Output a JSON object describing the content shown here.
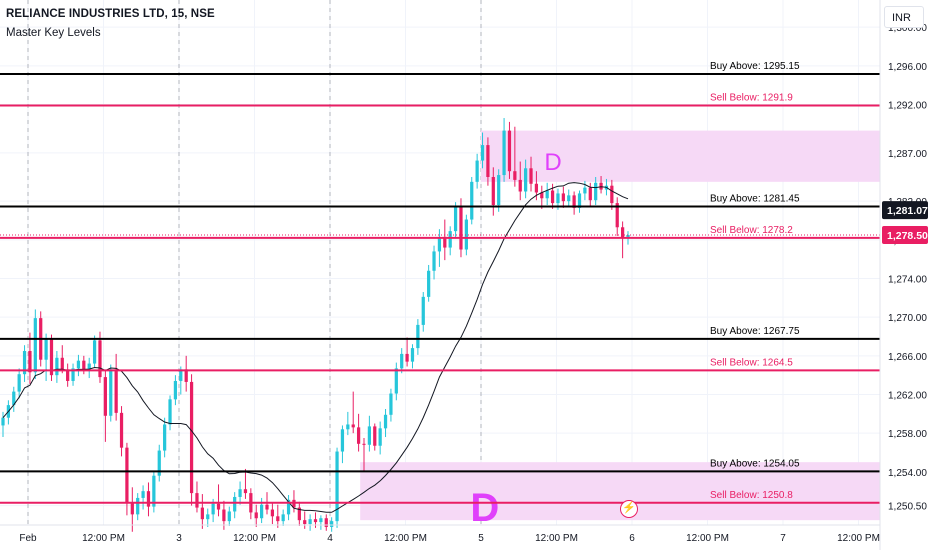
{
  "header": {
    "symbol_line": "RELIANCE INDUSTRIES LTD, 15, NSE",
    "indicator": "Master Key Levels"
  },
  "currency_button": "INR",
  "chart_data": {
    "type": "candlestick",
    "title": "RELIANCE INDUSTRIES LTD, 15, NSE",
    "y_axis": {
      "ylim": [
        1248.5,
        1302.5
      ],
      "ticks": [
        "1,300.00",
        "1,296.00",
        "1,292.00",
        "1,287.00",
        "1,282.00",
        "1,278.00",
        "1,274.00",
        "1,270.00",
        "1,266.00",
        "1,262.00",
        "1,258.00",
        "1,254.00",
        "1,250.50"
      ],
      "tick_values": [
        1300.0,
        1296.0,
        1292.0,
        1287.0,
        1282.0,
        1278.0,
        1274.0,
        1270.0,
        1266.0,
        1262.0,
        1258.0,
        1254.0,
        1250.5
      ]
    },
    "x_axis": {
      "ticks": [
        {
          "label": "Feb",
          "session": 0.0
        },
        {
          "label": "12:00 PM",
          "session": 0.5
        },
        {
          "label": "3",
          "session": 1.0
        },
        {
          "label": "12:00 PM",
          "session": 1.5
        },
        {
          "label": "4",
          "session": 2.0
        },
        {
          "label": "12:00 PM",
          "session": 2.5
        },
        {
          "label": "5",
          "session": 3.0
        },
        {
          "label": "12:00 PM",
          "session": 3.5
        },
        {
          "label": "6",
          "session": 4.0
        },
        {
          "label": "12:00 PM",
          "session": 4.5
        },
        {
          "label": "7",
          "session": 5.0
        },
        {
          "label": "12:00 PM",
          "session": 5.5
        }
      ]
    },
    "levels": [
      {
        "label": "Buy Above: 1295.15",
        "value": 1295.15,
        "color": "#000000"
      },
      {
        "label": "Sell Below: 1291.9",
        "value": 1291.9,
        "color": "#e91e63"
      },
      {
        "label": "Buy Above: 1281.45",
        "value": 1281.45,
        "color": "#000000"
      },
      {
        "label": "Sell Below: 1278.2",
        "value": 1278.2,
        "color": "#e91e63"
      },
      {
        "label": "Buy Above: 1267.75",
        "value": 1267.75,
        "color": "#000000"
      },
      {
        "label": "Sell Below: 1264.5",
        "value": 1264.5,
        "color": "#e91e63"
      },
      {
        "label": "Buy Above: 1254.05",
        "value": 1254.05,
        "color": "#000000"
      },
      {
        "label": "Sell Below: 1250.8",
        "value": 1250.8,
        "color": "#e91e63"
      }
    ],
    "zones": [
      {
        "label": "D",
        "start_session": 3.0,
        "top": 1289.3,
        "bottom": 1284.0,
        "fill": "#f6d9f6"
      },
      {
        "label": "D",
        "start_session": 2.2,
        "top": 1255.0,
        "bottom": 1249.0,
        "fill": "#f6d9f6"
      }
    ],
    "price_labels": [
      {
        "text": "1,281.07",
        "value": 1281.07,
        "bg": "#131722",
        "fg": "#ffffff"
      },
      {
        "text": "1,278.50",
        "value": 1278.5,
        "bg": "#e91e63",
        "fg": "#ffffff"
      }
    ],
    "colors": {
      "up": "#26c6da",
      "down": "#e91e63",
      "ma": "#131722"
    },
    "candles": [
      [
        1258.8,
        1260.2,
        1257.6,
        1259.6
      ],
      [
        1259.6,
        1261.4,
        1258.9,
        1260.9
      ],
      [
        1260.9,
        1262.8,
        1260.2,
        1262.3
      ],
      [
        1262.3,
        1264.7,
        1261.6,
        1264.1
      ],
      [
        1264.1,
        1267.1,
        1263.3,
        1266.5
      ],
      [
        1266.5,
        1268.4,
        1263.1,
        1264.3
      ],
      [
        1264.3,
        1270.8,
        1263.6,
        1269.9
      ],
      [
        1269.9,
        1270.6,
        1264.9,
        1265.6
      ],
      [
        1265.6,
        1268.3,
        1263.4,
        1267.7
      ],
      [
        1267.7,
        1268.2,
        1263.4,
        1264.0
      ],
      [
        1264.0,
        1266.5,
        1263.2,
        1265.8
      ],
      [
        1265.8,
        1267.1,
        1264.2,
        1264.6
      ],
      [
        1264.6,
        1265.2,
        1262.8,
        1263.4
      ],
      [
        1263.4,
        1265.2,
        1262.9,
        1264.7
      ],
      [
        1264.7,
        1266.1,
        1263.9,
        1265.5
      ],
      [
        1265.5,
        1266.0,
        1264.1,
        1264.6
      ],
      [
        1264.6,
        1265.8,
        1263.7,
        1265.2
      ],
      [
        1265.2,
        1268.1,
        1264.8,
        1267.6
      ],
      [
        1267.6,
        1268.5,
        1263.2,
        1263.8
      ],
      [
        1263.8,
        1264.5,
        1257.1,
        1259.8
      ],
      [
        1259.8,
        1265.1,
        1259.2,
        1264.6
      ],
      [
        1264.6,
        1266.2,
        1259.3,
        1260.1
      ],
      [
        1260.1,
        1260.8,
        1255.6,
        1256.5
      ],
      [
        1256.5,
        1257.0,
        1249.5,
        1250.8
      ],
      [
        1250.8,
        1252.4,
        1247.8,
        1249.6
      ],
      [
        1249.6,
        1251.8,
        1249.0,
        1251.3
      ],
      [
        1251.3,
        1252.6,
        1250.1,
        1252.0
      ],
      [
        1252.0,
        1252.9,
        1249.4,
        1250.4
      ],
      [
        1250.4,
        1254.1,
        1249.8,
        1253.6
      ],
      [
        1253.6,
        1256.8,
        1253.0,
        1256.2
      ],
      [
        1256.2,
        1259.6,
        1255.5,
        1258.9
      ],
      [
        1258.9,
        1261.9,
        1258.3,
        1261.5
      ],
      [
        1261.5,
        1264.0,
        1260.9,
        1263.4
      ],
      [
        1263.4,
        1264.9,
        1262.0,
        1264.6
      ],
      [
        1264.6,
        1266.0,
        1262.3,
        1263.3
      ],
      [
        1263.3,
        1264.1,
        1250.5,
        1251.8
      ],
      [
        1251.8,
        1253.0,
        1249.8,
        1250.3
      ],
      [
        1250.3,
        1251.7,
        1248.1,
        1249.1
      ],
      [
        1249.1,
        1250.2,
        1248.3,
        1249.6
      ],
      [
        1249.6,
        1251.2,
        1248.8,
        1250.7
      ],
      [
        1250.7,
        1252.7,
        1249.4,
        1250.1
      ],
      [
        1250.1,
        1251.0,
        1248.0,
        1248.9
      ],
      [
        1248.9,
        1250.4,
        1248.4,
        1249.9
      ],
      [
        1249.9,
        1251.9,
        1249.2,
        1251.4
      ],
      [
        1251.4,
        1253.0,
        1250.6,
        1252.2
      ],
      [
        1252.2,
        1254.3,
        1251.2,
        1251.8
      ],
      [
        1251.8,
        1252.3,
        1249.1,
        1249.8
      ],
      [
        1249.8,
        1250.6,
        1248.3,
        1249.2
      ],
      [
        1249.2,
        1251.3,
        1248.7,
        1250.6
      ],
      [
        1250.6,
        1251.9,
        1249.6,
        1250.1
      ],
      [
        1250.1,
        1250.8,
        1248.6,
        1249.4
      ],
      [
        1249.4,
        1250.6,
        1248.2,
        1248.9
      ],
      [
        1248.9,
        1250.1,
        1248.4,
        1249.6
      ],
      [
        1249.6,
        1251.6,
        1249.0,
        1251.1
      ],
      [
        1251.1,
        1252.1,
        1249.8,
        1250.3
      ],
      [
        1250.3,
        1250.9,
        1248.4,
        1249.0
      ],
      [
        1249.0,
        1249.9,
        1248.1,
        1248.6
      ],
      [
        1248.6,
        1249.6,
        1247.9,
        1249.1
      ],
      [
        1249.1,
        1249.8,
        1248.2,
        1248.8
      ],
      [
        1248.8,
        1249.5,
        1248.0,
        1249.2
      ],
      [
        1249.2,
        1249.6,
        1247.9,
        1248.3
      ],
      [
        1248.3,
        1249.3,
        1247.8,
        1248.9
      ],
      [
        1248.9,
        1256.5,
        1248.2,
        1256.1
      ],
      [
        1256.1,
        1258.8,
        1254.9,
        1258.4
      ],
      [
        1258.4,
        1260.2,
        1257.8,
        1258.9
      ],
      [
        1258.9,
        1262.3,
        1258.0,
        1258.6
      ],
      [
        1258.6,
        1260.0,
        1256.1,
        1256.9
      ],
      [
        1256.9,
        1257.5,
        1254.1,
        1256.8
      ],
      [
        1256.8,
        1259.8,
        1256.1,
        1258.7
      ],
      [
        1258.7,
        1259.0,
        1256.2,
        1256.7
      ],
      [
        1256.7,
        1259.2,
        1255.8,
        1258.5
      ],
      [
        1258.5,
        1260.5,
        1257.6,
        1259.9
      ],
      [
        1259.9,
        1262.6,
        1259.2,
        1262.1
      ],
      [
        1262.1,
        1265.3,
        1261.4,
        1264.7
      ],
      [
        1264.7,
        1266.8,
        1264.2,
        1266.2
      ],
      [
        1266.2,
        1267.9,
        1264.9,
        1265.4
      ],
      [
        1265.4,
        1267.2,
        1264.7,
        1266.8
      ],
      [
        1266.8,
        1269.8,
        1266.1,
        1269.2
      ],
      [
        1269.2,
        1272.6,
        1268.5,
        1272.1
      ],
      [
        1272.1,
        1275.4,
        1271.6,
        1274.8
      ],
      [
        1274.8,
        1277.4,
        1273.9,
        1276.8
      ],
      [
        1276.8,
        1279.1,
        1275.2,
        1278.3
      ],
      [
        1278.3,
        1280.1,
        1275.9,
        1277.2
      ],
      [
        1277.2,
        1279.4,
        1276.4,
        1278.9
      ],
      [
        1278.9,
        1281.9,
        1278.2,
        1281.4
      ],
      [
        1281.4,
        1282.3,
        1276.2,
        1277.0
      ],
      [
        1277.0,
        1280.6,
        1276.4,
        1280.1
      ],
      [
        1280.1,
        1284.5,
        1279.6,
        1284.0
      ],
      [
        1284.0,
        1286.9,
        1283.3,
        1286.2
      ],
      [
        1286.2,
        1289.1,
        1285.4,
        1287.8
      ],
      [
        1287.8,
        1288.6,
        1283.6,
        1284.5
      ],
      [
        1284.5,
        1285.5,
        1280.5,
        1281.6
      ],
      [
        1281.6,
        1285.3,
        1280.9,
        1284.7
      ],
      [
        1284.7,
        1290.6,
        1284.0,
        1289.3
      ],
      [
        1289.3,
        1290.2,
        1284.3,
        1285.1
      ],
      [
        1285.1,
        1289.7,
        1283.5,
        1284.2
      ],
      [
        1284.2,
        1286.1,
        1282.1,
        1283.0
      ],
      [
        1283.0,
        1286.3,
        1282.3,
        1285.4
      ],
      [
        1285.4,
        1286.6,
        1283.0,
        1283.8
      ],
      [
        1283.8,
        1285.1,
        1282.1,
        1282.9
      ],
      [
        1282.9,
        1283.6,
        1281.2,
        1282.3
      ],
      [
        1282.3,
        1283.9,
        1281.6,
        1283.1
      ],
      [
        1283.1,
        1283.8,
        1281.2,
        1281.8
      ],
      [
        1281.8,
        1283.3,
        1281.1,
        1282.8
      ],
      [
        1282.8,
        1283.5,
        1281.3,
        1282.0
      ],
      [
        1282.0,
        1283.2,
        1281.4,
        1282.6
      ],
      [
        1282.6,
        1283.0,
        1280.6,
        1281.3
      ],
      [
        1281.3,
        1283.1,
        1280.8,
        1282.8
      ],
      [
        1282.8,
        1284.1,
        1282.1,
        1283.4
      ],
      [
        1283.4,
        1283.9,
        1281.5,
        1282.1
      ],
      [
        1282.1,
        1284.5,
        1281.6,
        1283.9
      ],
      [
        1283.9,
        1284.6,
        1282.8,
        1283.2
      ],
      [
        1283.2,
        1284.3,
        1282.6,
        1283.6
      ],
      [
        1283.6,
        1284.2,
        1281.1,
        1281.8
      ],
      [
        1281.8,
        1282.4,
        1278.4,
        1279.3
      ],
      [
        1279.3,
        1279.9,
        1276.1,
        1278.2
      ],
      [
        1278.2,
        1278.9,
        1277.5,
        1278.5
      ]
    ]
  }
}
